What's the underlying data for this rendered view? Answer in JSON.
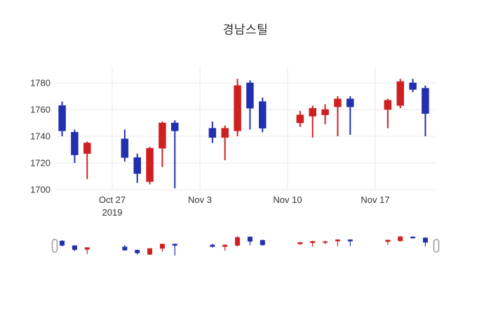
{
  "title": "경남스틸",
  "colors": {
    "up": "#ce2020",
    "down": "#2230af",
    "grid": "#e8e8e8",
    "tick_text": "#333333",
    "title_text": "#2a2a2a",
    "handle_stroke": "#999999",
    "handle_fill": "#ffffff",
    "background": "#ffffff"
  },
  "chart_data": {
    "type": "candlestick",
    "title": "경남스틸",
    "increasing_color": "#ce2020",
    "decreasing_color": "#2230af",
    "grid": true,
    "rangeslider": true,
    "y_ticks": [
      1700,
      1720,
      1740,
      1760,
      1780
    ],
    "ylim": [
      1699,
      1792
    ],
    "x_ticks": [
      {
        "date": "2019-10-27",
        "label": "Oct 27",
        "sublabel": "2019"
      },
      {
        "date": "2019-11-03",
        "label": "Nov 3",
        "sublabel": ""
      },
      {
        "date": "2019-11-10",
        "label": "Nov 10",
        "sublabel": ""
      },
      {
        "date": "2019-11-17",
        "label": "Nov 17",
        "sublabel": ""
      }
    ],
    "ohlc": [
      {
        "date": "2019-10-23",
        "open": 1763,
        "high": 1766,
        "low": 1740,
        "close": 1744
      },
      {
        "date": "2019-10-24",
        "open": 1743,
        "high": 1745,
        "low": 1720,
        "close": 1726
      },
      {
        "date": "2019-10-25",
        "open": 1727,
        "high": 1736,
        "low": 1708,
        "close": 1735
      },
      {
        "date": "2019-10-28",
        "open": 1738,
        "high": 1745,
        "low": 1721,
        "close": 1724
      },
      {
        "date": "2019-10-29",
        "open": 1724,
        "high": 1727,
        "low": 1705,
        "close": 1712
      },
      {
        "date": "2019-10-30",
        "open": 1706,
        "high": 1732,
        "low": 1704,
        "close": 1731
      },
      {
        "date": "2019-10-31",
        "open": 1731,
        "high": 1751,
        "low": 1717,
        "close": 1750
      },
      {
        "date": "2019-11-01",
        "open": 1750,
        "high": 1752,
        "low": 1701,
        "close": 1744
      },
      {
        "date": "2019-11-04",
        "open": 1746,
        "high": 1751,
        "low": 1735,
        "close": 1739
      },
      {
        "date": "2019-11-05",
        "open": 1739,
        "high": 1748,
        "low": 1722,
        "close": 1746
      },
      {
        "date": "2019-11-06",
        "open": 1744,
        "high": 1783,
        "low": 1740,
        "close": 1778
      },
      {
        "date": "2019-11-07",
        "open": 1780,
        "high": 1782,
        "low": 1745,
        "close": 1761
      },
      {
        "date": "2019-11-08",
        "open": 1766,
        "high": 1769,
        "low": 1743,
        "close": 1746
      },
      {
        "date": "2019-11-11",
        "open": 1750,
        "high": 1759,
        "low": 1747,
        "close": 1756
      },
      {
        "date": "2019-11-12",
        "open": 1755,
        "high": 1763,
        "low": 1739,
        "close": 1761
      },
      {
        "date": "2019-11-13",
        "open": 1756,
        "high": 1764,
        "low": 1749,
        "close": 1760
      },
      {
        "date": "2019-11-14",
        "open": 1762,
        "high": 1770,
        "low": 1740,
        "close": 1768
      },
      {
        "date": "2019-11-15",
        "open": 1768,
        "high": 1770,
        "low": 1741,
        "close": 1762
      },
      {
        "date": "2019-11-18",
        "open": 1760,
        "high": 1768,
        "low": 1746,
        "close": 1767
      },
      {
        "date": "2019-11-19",
        "open": 1763,
        "high": 1783,
        "low": 1761,
        "close": 1781
      },
      {
        "date": "2019-11-20",
        "open": 1780,
        "high": 1783,
        "low": 1773,
        "close": 1775
      },
      {
        "date": "2019-11-21",
        "open": 1776,
        "high": 1778,
        "low": 1740,
        "close": 1757
      }
    ]
  }
}
